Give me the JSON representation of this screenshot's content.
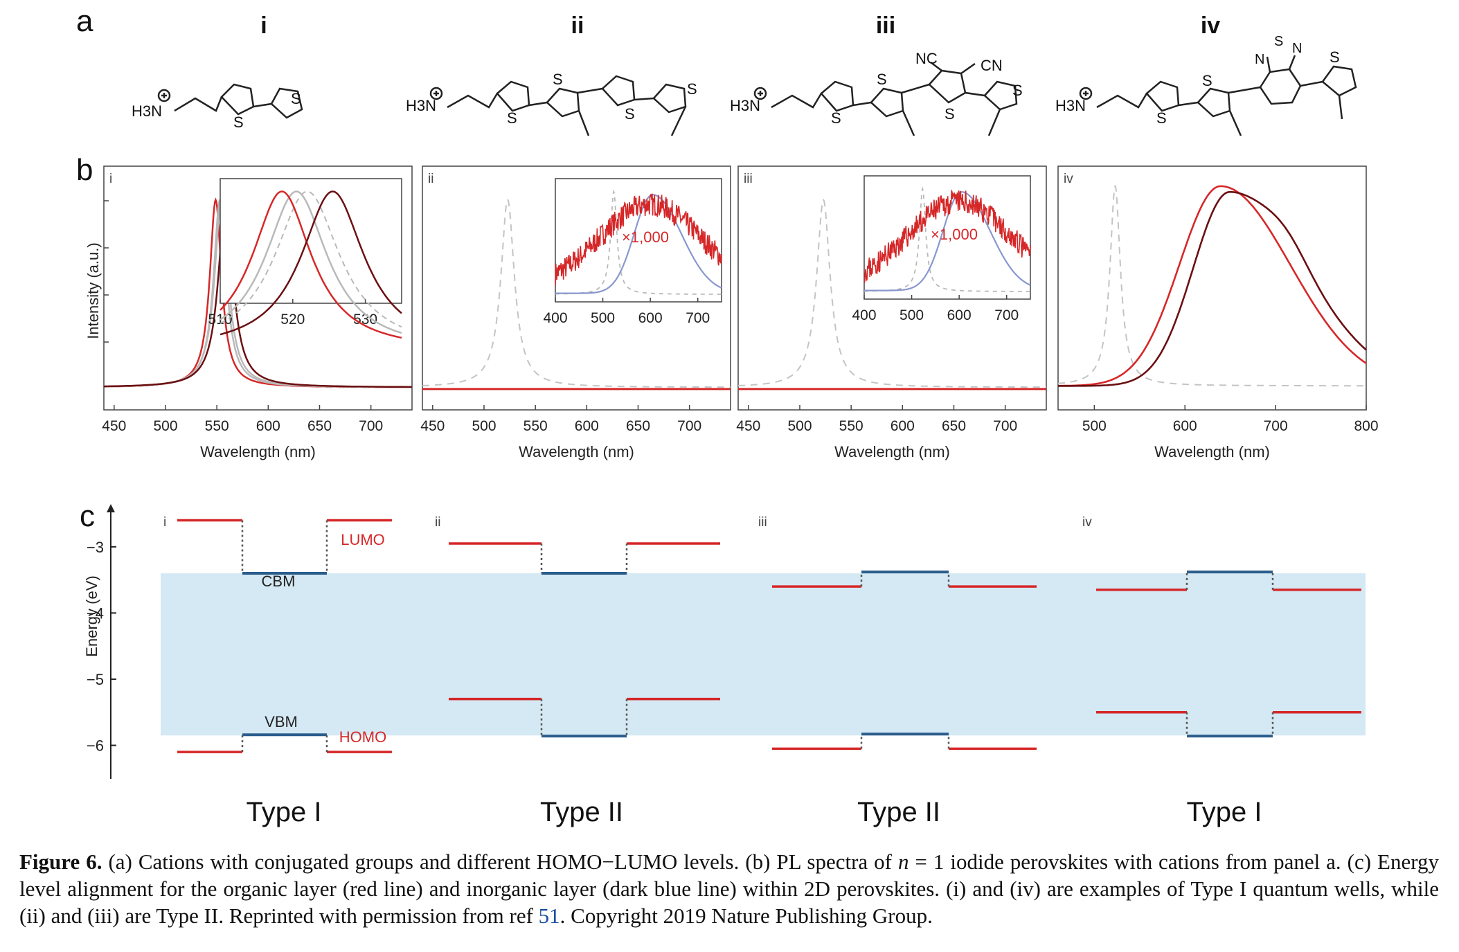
{
  "panel_a": {
    "label": "a",
    "molecules": [
      {
        "roman": "i",
        "ammonium": "H3N",
        "groups": []
      },
      {
        "roman": "ii",
        "ammonium": "H3N",
        "groups": []
      },
      {
        "roman": "iii",
        "ammonium": "H3N",
        "groups": [
          "NC",
          "CN"
        ]
      },
      {
        "roman": "iv",
        "ammonium": "H3N",
        "groups": [
          "N",
          "S",
          "N"
        ]
      }
    ],
    "ring_atom": "S"
  },
  "panel_b": {
    "label": "b",
    "ylabel": "Intensity (a.u.)",
    "xlabel": "Wavelength (nm)",
    "sub_labels": [
      "i",
      "ii",
      "iii",
      "iv"
    ],
    "multiplier_label": "×1,000"
  },
  "panel_c": {
    "label": "c",
    "ylabel": "Energy (eV)",
    "sub_labels": [
      "i",
      "ii",
      "iii",
      "iv"
    ],
    "lumo_label": "LUMO",
    "homo_label": "HOMO",
    "cbm_label": "CBM",
    "vbm_label": "VBM",
    "types": [
      "Type I",
      "Type II",
      "Type II",
      "Type I"
    ]
  },
  "colors": {
    "red": "#d62728",
    "dark_red": "#6b0f12",
    "gray": "#b9b9b9",
    "blue_line": "#2b5d8c",
    "band": "#d4e9f4",
    "perovskite_ref": "#c4c4c4"
  },
  "chart_data": [
    {
      "type": "line",
      "panel": "b-i",
      "xlabel": "Wavelength (nm)",
      "ylabel": "Intensity (a.u.)",
      "xlim": [
        440,
        740
      ],
      "xticks": [
        450,
        500,
        550,
        600,
        650,
        700
      ],
      "series": [
        {
          "color": "#d62728",
          "peak_x": 518,
          "peak_y": 1.0
        },
        {
          "color": "#b9b9b9",
          "peak_x": 521,
          "peak_y": 1.0
        },
        {
          "color": "#b9b9b9",
          "peak_x": 522,
          "peak_y": 1.0
        },
        {
          "color": "#6b0f12",
          "peak_x": 525,
          "peak_y": 1.0
        }
      ],
      "inset": {
        "xlim": [
          510,
          535
        ],
        "xticks": [
          510,
          520,
          530
        ]
      }
    },
    {
      "type": "line",
      "panel": "b-ii",
      "xlabel": "Wavelength (nm)",
      "xlim": [
        440,
        740
      ],
      "xticks": [
        450,
        500,
        550,
        600,
        650,
        700
      ],
      "series": [
        {
          "color": "#c4c4c4",
          "dashed": true,
          "peak_x": 523,
          "peak_y": 1.0
        },
        {
          "color": "#d62728",
          "peak_x": 600,
          "peak_y": 0.001
        }
      ],
      "inset": {
        "xlim": [
          400,
          750
        ],
        "xticks": [
          400,
          500,
          600,
          700
        ],
        "multiplier": "×1,000"
      }
    },
    {
      "type": "line",
      "panel": "b-iii",
      "xlabel": "Wavelength (nm)",
      "xlim": [
        440,
        740
      ],
      "xticks": [
        450,
        500,
        550,
        600,
        650,
        700
      ],
      "series": [
        {
          "color": "#c4c4c4",
          "dashed": true,
          "peak_x": 523,
          "peak_y": 1.0
        },
        {
          "color": "#d62728",
          "peak_x": 600,
          "peak_y": 0.001
        }
      ],
      "inset": {
        "xlim": [
          400,
          750
        ],
        "xticks": [
          400,
          500,
          600,
          700
        ],
        "multiplier": "×1,000"
      }
    },
    {
      "type": "line",
      "panel": "b-iv",
      "xlabel": "Wavelength (nm)",
      "xlim": [
        460,
        800
      ],
      "xticks": [
        500,
        600,
        700,
        800
      ],
      "series": [
        {
          "color": "#c4c4c4",
          "dashed": true,
          "peak_x": 523,
          "peak_y": 1.0
        },
        {
          "color": "#d62728",
          "peak_x": 660,
          "peak_y": 1.0
        },
        {
          "color": "#6b0f12",
          "peak_x": 668,
          "peak_y": 1.0
        }
      ]
    },
    {
      "type": "line",
      "panel": "c",
      "ylabel": "Energy (eV)",
      "ylim": [
        -6.35,
        -2.5
      ],
      "yticks": [
        -3,
        -4,
        -5,
        -6
      ],
      "inorganic": {
        "CBM": -3.4,
        "VBM": -5.85
      },
      "organic": [
        {
          "panel": "i",
          "LUMO": -2.6,
          "HOMO": -6.1,
          "type": "Type I"
        },
        {
          "panel": "ii",
          "LUMO": -2.95,
          "HOMO": -5.3,
          "type": "Type II"
        },
        {
          "panel": "iii",
          "LUMO": -3.6,
          "HOMO": -6.05,
          "type": "Type II"
        },
        {
          "panel": "iv",
          "LUMO": -3.65,
          "HOMO": -5.5,
          "type": "Type I"
        }
      ]
    }
  ],
  "caption": {
    "figure_label": "Figure 6.",
    "seg1": " (a) Cations with conjugated groups and different HOMO−LUMO levels. (b) PL spectra of ",
    "n_var": "n",
    "seg2": " = 1 iodide perovskites with cations from panel a. (c) Energy level alignment for the organic layer (red line) and inorganic layer (dark blue line) within 2D perovskites. (i) and (iv) are examples of Type I quantum wells, while (ii) and (iii) are Type II. Reprinted with permission from ref ",
    "ref_number": "51",
    "seg3": ". Copyright 2019 Nature Publishing Group."
  }
}
